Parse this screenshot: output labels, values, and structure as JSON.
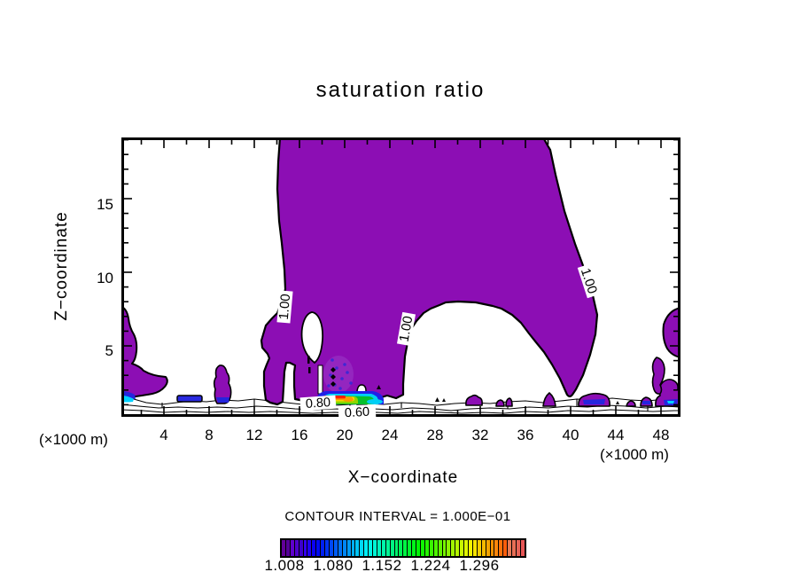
{
  "title": "saturation ratio",
  "axes": {
    "x_label": "X−coordinate",
    "y_label": "Z−coordinate",
    "x_unit_left": "(×1000 m)",
    "x_unit_right": "(×1000 m)",
    "x_ticks": [
      4,
      8,
      12,
      16,
      20,
      24,
      28,
      32,
      36,
      40,
      44,
      48
    ],
    "y_ticks": [
      5,
      10,
      15
    ]
  },
  "contour_labels": {
    "left_100": "1.00",
    "center_100": "1.00",
    "right_100": "1.00",
    "surface_080": "0.80",
    "surface_060": "0.60"
  },
  "contour_interval_text": "CONTOUR INTERVAL = 1.000E−01",
  "colorbar": {
    "labels": [
      "1.008",
      "1.080",
      "1.152",
      "1.224",
      "1.296"
    ],
    "n_stripes": 56
  },
  "colors": {
    "fill_purple": "#8C0EB4",
    "blue": "#2525DD",
    "cyan": "#00CFF5",
    "green": "#06C02C",
    "yellow_green": "#8FD400",
    "yellow": "#FFE000",
    "orange": "#FF9A00",
    "red": "#FF2000"
  },
  "chart_data": {
    "type": "heatmap",
    "subtype": "filled-contour-vertical-cross-section",
    "title": "saturation ratio",
    "xlabel": "X−coordinate (×1000 m)",
    "ylabel": "Z−coordinate (×1000 m)",
    "xlim": [
      0.2,
      49.7
    ],
    "ylim": [
      0.2,
      19.3
    ],
    "x_tick_values": [
      4,
      8,
      12,
      16,
      20,
      24,
      28,
      32,
      36,
      40,
      44,
      48
    ],
    "y_tick_values": [
      5,
      10,
      15
    ],
    "contour_interval": 0.1,
    "labeled_contour_levels": [
      0.6,
      0.8,
      1.0
    ],
    "fill_threshold": 1.0,
    "colorbar_tick_values": [
      1.008,
      1.08,
      1.152,
      1.224,
      1.296
    ],
    "grid": false,
    "legend_position": "bottom-colorbar",
    "description": "Purple shading marks saturation ratio ≥ 1.00: one large plume spanning x≈13–36 reaching the model top with an arch-shaped subsaturated hole beneath it (x≈24–37, below z≈9), plus small saturated patches near the surface across the domain. Bright blue-to-red cells near x≈17–22, z≈1 mark locally higher ratios up to ≈1.3. Contours of 0.60–0.90 crowd just above the lower boundary."
  }
}
